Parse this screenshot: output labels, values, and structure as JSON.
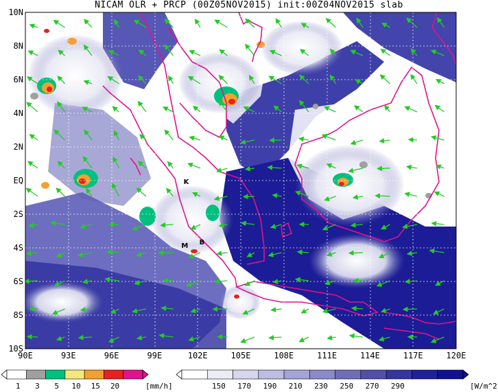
{
  "title": "NICAM OLR + PRCP (00Z05NOV2015) init:00Z04NOV2015 slab",
  "map": {
    "lon_range": [
      90,
      120
    ],
    "lat_range": [
      -10,
      10
    ],
    "x_ticks": [
      "90E",
      "93E",
      "96E",
      "99E",
      "102E",
      "105E",
      "108E",
      "111E",
      "114E",
      "117E",
      "120E"
    ],
    "y_ticks": [
      "10N",
      "8N",
      "6N",
      "4N",
      "2N",
      "EQ",
      "2S",
      "4S",
      "6S",
      "8S",
      "10S"
    ],
    "grid": "dotted",
    "coastline_color": "#e0138c",
    "wind_vector_color": "#22cc22",
    "olr_background_color": "#2a2aa0",
    "markers": [
      {
        "id": "K",
        "label": "K",
        "lon": 101.2,
        "lat": -0.2
      },
      {
        "id": "B",
        "label": "B",
        "lon": 102.3,
        "lat": -3.8
      },
      {
        "id": "M",
        "label": "M",
        "lon": 101.1,
        "lat": -4.0
      }
    ]
  },
  "precip_colorbar": {
    "labels": [
      "1",
      "3",
      "5",
      "10",
      "15",
      "20"
    ],
    "unit": "[mm/h]",
    "colors": [
      "#ffffff",
      "#a0a0a0",
      "#00c080",
      "#f5e87a",
      "#f4a030",
      "#e82020",
      "#e0138c"
    ]
  },
  "olr_colorbar": {
    "labels": [
      "150",
      "170",
      "190",
      "210",
      "230",
      "250",
      "270",
      "290"
    ],
    "unit": "[W/m^2]",
    "colors": [
      "#ffffff",
      "#ececf6",
      "#d6d6ee",
      "#bdbde2",
      "#a4a4d6",
      "#8a8ac8",
      "#6e6eb8",
      "#5050a8",
      "#3535a0",
      "#20209a",
      "#101090"
    ]
  }
}
